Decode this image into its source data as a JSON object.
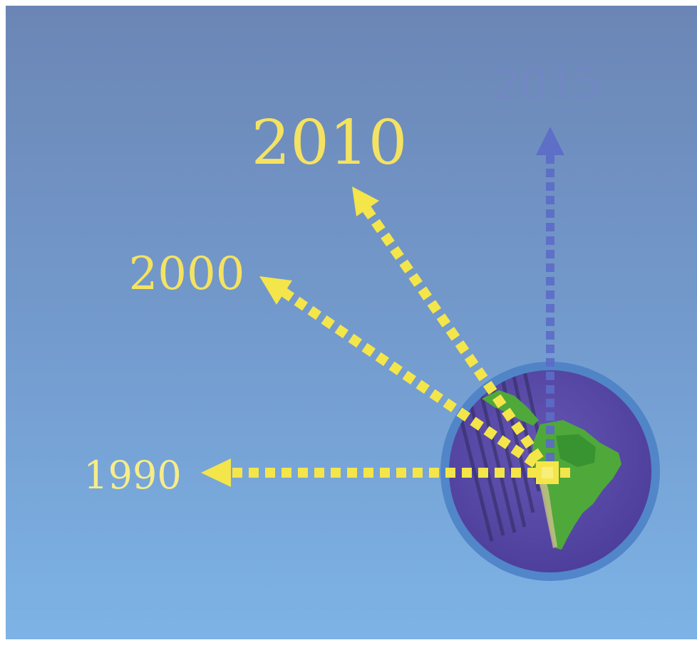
{
  "labels": {
    "year_1990": "1990",
    "year_2000": "2000",
    "year_2010": "2010",
    "year_2015": "2015"
  },
  "colors": {
    "sky_top": "#6E88B6",
    "sky_bottom": "#7FB0E2",
    "arrow_yellow": "#F3E54A",
    "label_yellow": "#F4E363",
    "arrow_blue": "#5E6CC4",
    "label_blue_faint": "#7486C6",
    "globe_ocean": "#5446A4",
    "globe_ring": "#4A7FC4",
    "land_green": "#4FA83A"
  },
  "icons": {
    "globe": "globe-icon"
  }
}
